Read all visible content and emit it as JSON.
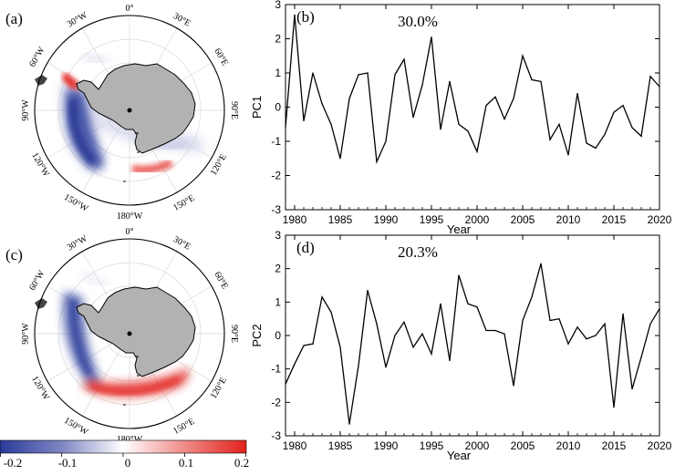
{
  "colors": {
    "land": "#b2b2b2",
    "negative": "#2e3f9e",
    "positive": "#e32620",
    "line": "#000000"
  },
  "maps": [
    {
      "panel_label": "(a)",
      "lon_labels": {
        "0": "0°",
        "30E": "30°E",
        "60E": "60°E",
        "90E": "90°E",
        "120E": "120°E",
        "150E": "150°E",
        "180": "180°W",
        "150W": "150°W",
        "120W": "120°W",
        "90W": "90°W",
        "60W": "60°W",
        "30W": "30°W"
      }
    },
    {
      "panel_label": "(c)",
      "lon_labels": {
        "0": "0°",
        "30E": "30°E",
        "60E": "60°E",
        "90E": "90°E",
        "120E": "120°E",
        "150E": "150°E",
        "180": "180°W",
        "150W": "150°W",
        "120W": "120°W",
        "90W": "90°W",
        "60W": "60°W",
        "30W": "30°W"
      }
    }
  ],
  "colorbar": {
    "ticks": [
      "-0.2",
      "-0.1",
      "0",
      "0.1",
      "0.2"
    ],
    "range": [
      -0.2,
      0.2
    ]
  },
  "chart_data": [
    {
      "type": "line",
      "panel_label": "(b)",
      "title": "30.0%",
      "xlabel": "Year",
      "ylabel": "PC1",
      "xlim": [
        1979,
        2020
      ],
      "ylim": [
        -3,
        3
      ],
      "xticks": [
        "1980",
        "1985",
        "1990",
        "1995",
        "2000",
        "2005",
        "2010",
        "2015",
        "2020"
      ],
      "yticks": [
        "-3",
        "-2",
        "-1",
        "0",
        "1",
        "2",
        "3"
      ],
      "x": [
        1979,
        1980,
        1981,
        1982,
        1983,
        1984,
        1985,
        1986,
        1987,
        1988,
        1989,
        1990,
        1991,
        1992,
        1993,
        1994,
        1995,
        1996,
        1997,
        1998,
        1999,
        2000,
        2001,
        2002,
        2003,
        2004,
        2005,
        2006,
        2007,
        2008,
        2009,
        2010,
        2011,
        2012,
        2013,
        2014,
        2015,
        2016,
        2017,
        2018,
        2019,
        2020
      ],
      "values": [
        -0.6,
        2.7,
        -0.4,
        1.0,
        0.1,
        -0.5,
        -1.5,
        0.25,
        0.95,
        1.0,
        -1.6,
        -1.0,
        0.95,
        1.4,
        -0.3,
        0.65,
        2.05,
        -0.65,
        0.75,
        -0.5,
        -0.7,
        -1.3,
        0.05,
        0.3,
        -0.35,
        0.25,
        1.5,
        0.8,
        0.75,
        -0.95,
        -0.5,
        -1.4,
        0.4,
        -1.05,
        -1.2,
        -0.8,
        -0.15,
        0.05,
        -0.6,
        -0.85,
        0.9,
        0.6
      ]
    },
    {
      "type": "line",
      "panel_label": "(d)",
      "title": "20.3%",
      "xlabel": "Year",
      "ylabel": "PC2",
      "xlim": [
        1979,
        2020
      ],
      "ylim": [
        -3,
        3
      ],
      "xticks": [
        "1980",
        "1985",
        "1990",
        "1995",
        "2000",
        "2005",
        "2010",
        "2015",
        "2020"
      ],
      "yticks": [
        "-3",
        "-2",
        "-1",
        "0",
        "1",
        "2",
        "3"
      ],
      "x": [
        1979,
        1980,
        1981,
        1982,
        1983,
        1984,
        1985,
        1986,
        1987,
        1988,
        1989,
        1990,
        1991,
        1992,
        1993,
        1994,
        1995,
        1996,
        1997,
        1998,
        1999,
        2000,
        2001,
        2002,
        2003,
        2004,
        2005,
        2006,
        2007,
        2008,
        2009,
        2010,
        2011,
        2012,
        2013,
        2014,
        2015,
        2016,
        2017,
        2018,
        2019,
        2020
      ],
      "values": [
        -1.45,
        -0.85,
        -0.3,
        -0.25,
        1.15,
        0.7,
        -0.35,
        -2.65,
        -0.9,
        1.35,
        0.35,
        -0.95,
        0.0,
        0.4,
        -0.35,
        0.05,
        -0.55,
        0.95,
        -0.75,
        1.8,
        0.95,
        0.85,
        0.15,
        0.15,
        0.05,
        -1.5,
        0.45,
        1.15,
        2.15,
        0.45,
        0.5,
        -0.25,
        0.25,
        -0.1,
        0.0,
        0.35,
        -2.15,
        0.65,
        -1.6,
        -0.65,
        0.35,
        0.8
      ]
    }
  ]
}
